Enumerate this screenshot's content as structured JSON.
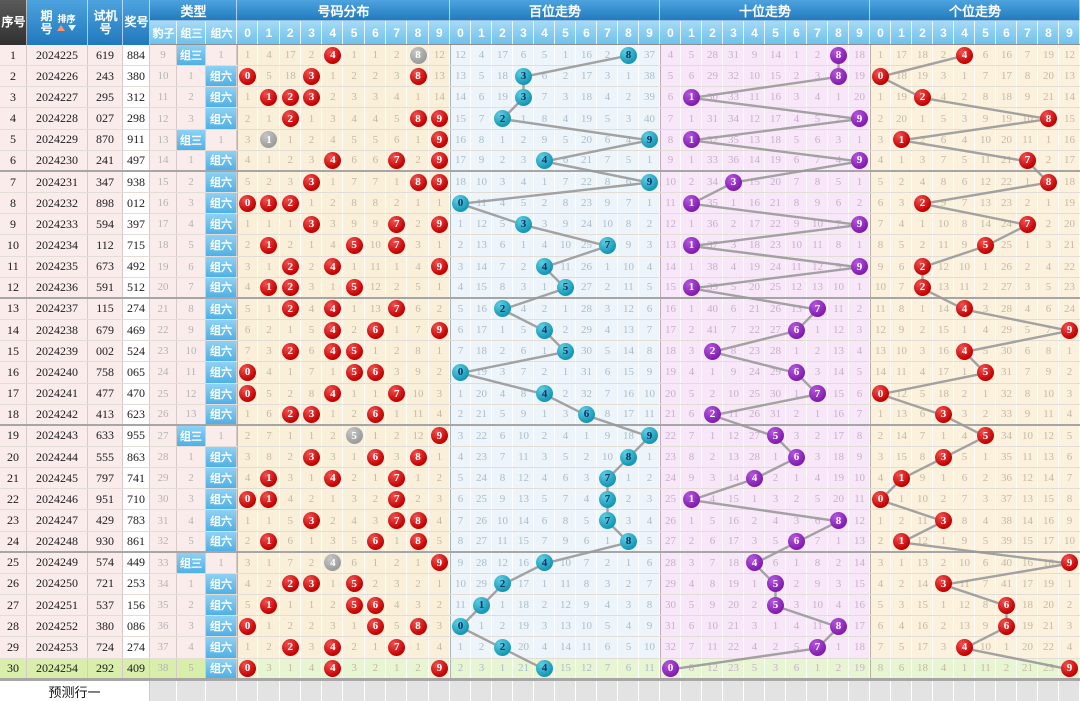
{
  "header": {
    "seq": "序号",
    "issue": "期号",
    "sort": "排序",
    "test_no": "试机号",
    "prize_no": "奖号",
    "type_group": "类型",
    "type_cols": [
      "豹子",
      "组三",
      "组六"
    ],
    "sections": [
      {
        "key": "fenbu",
        "label": "号码分布"
      },
      {
        "key": "bai",
        "label": "百位走势"
      },
      {
        "key": "shi",
        "label": "十位走势"
      },
      {
        "key": "ge",
        "label": "个位走势"
      }
    ],
    "digits": [
      "0",
      "1",
      "2",
      "3",
      "4",
      "5",
      "6",
      "7",
      "8",
      "9"
    ]
  },
  "footer": {
    "label": "预测行一"
  },
  "chart_data": {
    "type": "table",
    "rows": [
      {
        "seq": "1",
        "issue": "2024225",
        "test": "619",
        "prize": "884",
        "type": "组三"
      },
      {
        "seq": "2",
        "issue": "2024226",
        "test": "243",
        "prize": "380",
        "type": "组六"
      },
      {
        "seq": "3",
        "issue": "2024227",
        "test": "295",
        "prize": "312",
        "type": "组六"
      },
      {
        "seq": "4",
        "issue": "2024228",
        "test": "027",
        "prize": "298",
        "type": "组六"
      },
      {
        "seq": "5",
        "issue": "2024229",
        "test": "870",
        "prize": "911",
        "type": "组三"
      },
      {
        "seq": "6",
        "issue": "2024230",
        "test": "241",
        "prize": "497",
        "type": "组六"
      },
      {
        "seq": "7",
        "issue": "2024231",
        "test": "347",
        "prize": "938",
        "type": "组六"
      },
      {
        "seq": "8",
        "issue": "2024232",
        "test": "898",
        "prize": "012",
        "type": "组六"
      },
      {
        "seq": "9",
        "issue": "2024233",
        "test": "594",
        "prize": "397",
        "type": "组六"
      },
      {
        "seq": "10",
        "issue": "2024234",
        "test": "112",
        "prize": "715",
        "type": "组六"
      },
      {
        "seq": "11",
        "issue": "2024235",
        "test": "673",
        "prize": "492",
        "type": "组六"
      },
      {
        "seq": "12",
        "issue": "2024236",
        "test": "591",
        "prize": "512",
        "type": "组六"
      },
      {
        "seq": "13",
        "issue": "2024237",
        "test": "115",
        "prize": "274",
        "type": "组六"
      },
      {
        "seq": "14",
        "issue": "2024238",
        "test": "679",
        "prize": "469",
        "type": "组六"
      },
      {
        "seq": "15",
        "issue": "2024239",
        "test": "002",
        "prize": "524",
        "type": "组六"
      },
      {
        "seq": "16",
        "issue": "2024240",
        "test": "758",
        "prize": "065",
        "type": "组六"
      },
      {
        "seq": "17",
        "issue": "2024241",
        "test": "477",
        "prize": "470",
        "type": "组六"
      },
      {
        "seq": "18",
        "issue": "2024242",
        "test": "413",
        "prize": "623",
        "type": "组六"
      },
      {
        "seq": "19",
        "issue": "2024243",
        "test": "633",
        "prize": "955",
        "type": "组三"
      },
      {
        "seq": "20",
        "issue": "2024244",
        "test": "555",
        "prize": "863",
        "type": "组六"
      },
      {
        "seq": "21",
        "issue": "2024245",
        "test": "797",
        "prize": "741",
        "type": "组六"
      },
      {
        "seq": "22",
        "issue": "2024246",
        "test": "951",
        "prize": "710",
        "type": "组六"
      },
      {
        "seq": "23",
        "issue": "2024247",
        "test": "429",
        "prize": "783",
        "type": "组六"
      },
      {
        "seq": "24",
        "issue": "2024248",
        "test": "930",
        "prize": "861",
        "type": "组六"
      },
      {
        "seq": "25",
        "issue": "2024249",
        "test": "574",
        "prize": "449",
        "type": "组三"
      },
      {
        "seq": "26",
        "issue": "2024250",
        "test": "721",
        "prize": "253",
        "type": "组六"
      },
      {
        "seq": "27",
        "issue": "2024251",
        "test": "537",
        "prize": "156",
        "type": "组六"
      },
      {
        "seq": "28",
        "issue": "2024252",
        "test": "380",
        "prize": "086",
        "type": "组六"
      },
      {
        "seq": "29",
        "issue": "2024253",
        "test": "724",
        "prize": "274",
        "type": "组六"
      },
      {
        "seq": "30",
        "issue": "2024254",
        "test": "292",
        "prize": "409",
        "type": "组六"
      }
    ],
    "leopard_miss_row1": 9,
    "miss_seeds_row1": {
      "fenbu": [
        1,
        4,
        17,
        2,
        null,
        1,
        1,
        2,
        null,
        12
      ],
      "bai": [
        12,
        4,
        17,
        6,
        5,
        1,
        16,
        2,
        null,
        37
      ],
      "shi": [
        4,
        5,
        28,
        31,
        9,
        14,
        1,
        2,
        null,
        18
      ],
      "ge": [
        1,
        17,
        18,
        2,
        null,
        6,
        16,
        7,
        19,
        12
      ]
    }
  },
  "colors": {
    "header_blue": "#2e86c4",
    "subheader_blue": "#8fd0f0",
    "seq_header_dark": "#3f3f3f",
    "left_cell_pink": "#fbecec",
    "fenbu_bg": "#faf0da",
    "bai_bg": "#edf5fb",
    "shi_bg": "#f8e7f8",
    "ge_bg": "#fbf1dd",
    "circle_red": "#d40000",
    "circle_gray": "#a9a9a9",
    "circle_cyan": "#1da4c0",
    "circle_purple": "#9229bf",
    "trend_line": "#999999",
    "latest_row_green": "#d9eeab",
    "footer_cell_gray": "#e3e3e3"
  }
}
